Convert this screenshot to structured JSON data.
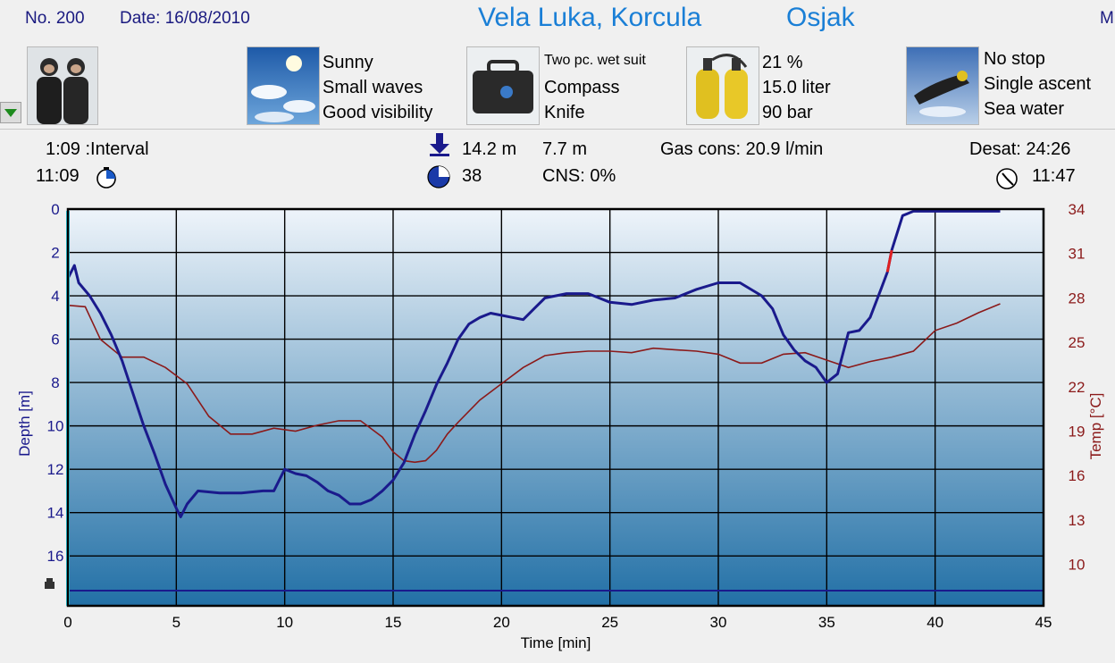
{
  "header": {
    "dive_no": "No. 200",
    "date": "Date: 16/08/2010",
    "location": "Vela Luka, Korcula",
    "site": "Osjak",
    "cut_letter": "M"
  },
  "conditions": {
    "weather": [
      "Sunny",
      "Small waves",
      "Good visibility"
    ],
    "equipment": [
      "Two pc. wet suit",
      "Compass",
      "Knife"
    ],
    "gas": [
      "21 %",
      "15.0 liter",
      "90 bar"
    ],
    "deco": [
      "No stop",
      "Single ascent",
      "Sea water"
    ]
  },
  "stats": {
    "interval": "1:09 :Interval",
    "entry_time": "11:09",
    "max_depth": "14.2 m",
    "avg_depth": "7.7 m",
    "duration": "38",
    "cns": "CNS:  0%",
    "gas_cons": "Gas cons: 20.9 l/min",
    "desat": "Desat: 24:26",
    "exit_time": "11:47"
  },
  "colors": {
    "depth_line": "#1a1a8c",
    "temp_line": "#8b1a1a",
    "ascent_warning": "#e02020",
    "title_blue": "#1a7fd6",
    "plot_top": "#eef4fa",
    "plot_bottom": "#2270a6"
  },
  "chart_data": {
    "type": "line",
    "xlabel": "Time [min]",
    "ylabel": "Depth [m]",
    "y2label": "Temp [°C]",
    "xlim": [
      0,
      45
    ],
    "ylim": [
      0,
      18.3
    ],
    "y2lim": [
      7.2,
      34
    ],
    "x_ticks": [
      "0",
      "5",
      "10",
      "15",
      "20",
      "25",
      "30",
      "35",
      "40",
      "45"
    ],
    "y_ticks": [
      "0",
      "2",
      "4",
      "6",
      "8",
      "10",
      "12",
      "14",
      "16"
    ],
    "y2_ticks": [
      "34",
      "31",
      "28",
      "25",
      "22",
      "19",
      "16",
      "13",
      "10"
    ],
    "grid": true,
    "reference_depth": 17.6,
    "series": [
      {
        "axis": "depth",
        "x": [
          0,
          0.3,
          0.5,
          1,
          1.5,
          2,
          2.5,
          3,
          3.5,
          4,
          4.5,
          5,
          5.2,
          5.5,
          6,
          7,
          8,
          9,
          9.5,
          10,
          10.5,
          11,
          11.5,
          12,
          12.5,
          13,
          13.5,
          14,
          14.5,
          15,
          15.5,
          16,
          16.5,
          17,
          17.5,
          18,
          18.5,
          19,
          19.5,
          20,
          20.5,
          21,
          21.5,
          22,
          23,
          24,
          25,
          26,
          27,
          28,
          29,
          30,
          31,
          32,
          32.5,
          33,
          33.5,
          34,
          34.5,
          35,
          35.5,
          36,
          36.5,
          37,
          37.5,
          37.8,
          38,
          38.5,
          39,
          40,
          41,
          42,
          43
        ],
        "y": [
          3.2,
          2.6,
          3.4,
          4.0,
          4.8,
          5.8,
          7.0,
          8.5,
          10.0,
          11.3,
          12.7,
          13.8,
          14.2,
          13.6,
          13.0,
          13.1,
          13.1,
          13.0,
          13.0,
          12.0,
          12.2,
          12.3,
          12.6,
          13.0,
          13.2,
          13.6,
          13.6,
          13.4,
          13.0,
          12.5,
          11.7,
          10.4,
          9.3,
          8.1,
          7.1,
          6.0,
          5.3,
          5.0,
          4.8,
          4.9,
          5.0,
          5.1,
          4.6,
          4.1,
          3.9,
          3.9,
          4.3,
          4.4,
          4.2,
          4.1,
          3.7,
          3.4,
          3.4,
          4.0,
          4.6,
          5.8,
          6.5,
          7.0,
          7.3,
          8.0,
          7.6,
          5.7,
          5.6,
          5.0,
          3.7,
          2.9,
          1.9,
          0.3,
          0.1,
          0.1,
          0.1,
          0.1,
          0.1
        ]
      },
      {
        "axis": "temp",
        "x": [
          0,
          0.8,
          1.5,
          2.5,
          3.5,
          4.5,
          5.5,
          6.5,
          7.5,
          8.5,
          9.5,
          10.5,
          11.5,
          12.5,
          13.5,
          14.5,
          15,
          15.5,
          16,
          16.5,
          17,
          17.5,
          18,
          19,
          20,
          21,
          22,
          23,
          24,
          25,
          26,
          27,
          28,
          29,
          30,
          31,
          32,
          33,
          34,
          35,
          36,
          37,
          38,
          39,
          40,
          41,
          42,
          43
        ],
        "y": [
          27.5,
          27.4,
          25.2,
          24.0,
          24.0,
          23.3,
          22.2,
          20.0,
          18.8,
          18.8,
          19.2,
          19.0,
          19.4,
          19.7,
          19.7,
          18.6,
          17.6,
          17.0,
          16.9,
          17.0,
          17.7,
          18.8,
          19.6,
          21.1,
          22.2,
          23.3,
          24.1,
          24.3,
          24.4,
          24.4,
          24.3,
          24.6,
          24.5,
          24.4,
          24.2,
          23.6,
          23.6,
          24.2,
          24.3,
          23.8,
          23.3,
          23.7,
          24.0,
          24.4,
          25.8,
          26.3,
          27.0,
          27.6
        ]
      }
    ]
  }
}
